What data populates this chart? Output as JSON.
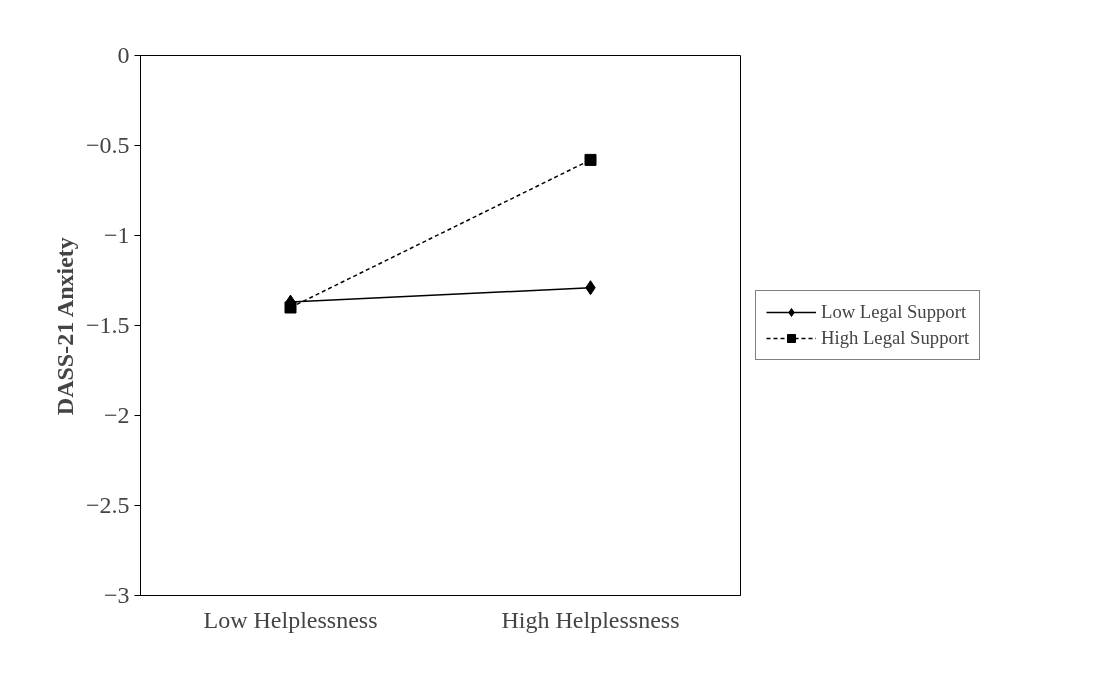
{
  "chart_data": {
    "type": "line",
    "ylabel": "DASS-21 Anxiety",
    "categories": [
      "Low Helplessness",
      "High Helplessness"
    ],
    "series": [
      {
        "name": "Low Legal Support",
        "color": "#000000",
        "values": [
          -1.37,
          -1.29
        ],
        "marker": "diamond",
        "line_style": "solid"
      },
      {
        "name": "High Legal Support",
        "color": "#000000",
        "values": [
          -1.4,
          -0.58
        ],
        "marker": "square",
        "line_style": "dashed"
      }
    ],
    "ylim": [
      -3,
      0
    ],
    "yticks": [
      -3,
      -2.5,
      -2,
      -1.5,
      -1,
      -0.5,
      0
    ],
    "grid": false,
    "legend": "right"
  }
}
